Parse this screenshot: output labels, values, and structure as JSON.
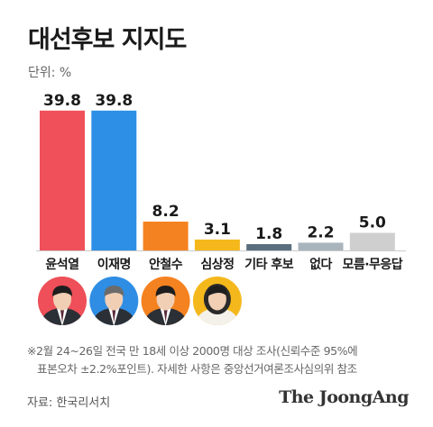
{
  "title": "대선후보 지지도",
  "unit_label": "단위: %",
  "chart_data": {
    "type": "bar",
    "categories": [
      "윤석열",
      "이재명",
      "안철수",
      "심상정",
      "기타 후보",
      "없다",
      "모름·무응답"
    ],
    "values": [
      39.8,
      39.8,
      8.2,
      3.1,
      1.8,
      2.2,
      5.0
    ],
    "value_labels": [
      "39.8",
      "39.8",
      "8.2",
      "3.1",
      "1.8",
      "2.2",
      "5.0"
    ],
    "colors": [
      "#f0505a",
      "#2e8fe6",
      "#f58220",
      "#f5b81c",
      "#5a6e7d",
      "#a9b4bd",
      "#cfcfcf"
    ],
    "ylim": [
      0,
      40
    ],
    "grid": false,
    "portraits": [
      {
        "candidate": "윤석열",
        "bg": "#ee4f58"
      },
      {
        "candidate": "이재명",
        "bg": "#2f8de4"
      },
      {
        "candidate": "안철수",
        "bg": "#f58220"
      },
      {
        "candidate": "심상정",
        "bg": "#f5b81c"
      }
    ]
  },
  "note_line1": "※2월 24~26일 전국 만 18세 이상 2000명 대상 조사(신뢰수준 95%에",
  "note_line2": "표본오차 ±2.2%포인트). 자세한 사항은 중앙선거여론조사심의위 참조",
  "source": "자료: 한국리서치",
  "brand": "The JoongAng"
}
